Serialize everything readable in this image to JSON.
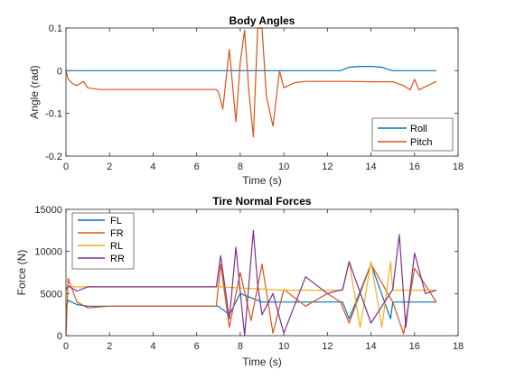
{
  "chart_data": [
    {
      "type": "line",
      "title": "Body Angles",
      "xlabel": "Time (s)",
      "ylabel": "Angle (rad)",
      "xlim": [
        0,
        18
      ],
      "ylim": [
        -0.2,
        0.1
      ],
      "xticks": [
        0,
        2,
        4,
        6,
        8,
        10,
        12,
        14,
        16,
        18
      ],
      "yticks": [
        -0.2,
        -0.1,
        0,
        0.1
      ],
      "xtick_labels": [
        "0",
        "2",
        "4",
        "6",
        "8",
        "10",
        "12",
        "14",
        "16",
        "18"
      ],
      "ytick_labels": [
        "-0.2",
        "-0.1",
        "0",
        "0.1"
      ],
      "grid": false,
      "legend_position": "bottom-right",
      "series": [
        {
          "name": "Roll",
          "color": "#0072BD",
          "x": [
            0,
            12.6,
            12.8,
            13.0,
            13.5,
            14.0,
            14.5,
            14.8,
            15.0,
            17.0
          ],
          "y": [
            0,
            0,
            0.004,
            0.008,
            0.01,
            0.01,
            0.008,
            0.003,
            0,
            0
          ]
        },
        {
          "name": "Pitch",
          "color": "#D95319",
          "x": [
            0,
            0.1,
            0.3,
            0.5,
            0.8,
            1.0,
            1.5,
            3.0,
            5.0,
            6.9,
            7.0,
            7.2,
            7.5,
            7.8,
            8.0,
            8.2,
            8.4,
            8.6,
            8.8,
            9.0,
            9.2,
            9.5,
            9.8,
            10.0,
            10.5,
            11.0,
            12.0,
            13.0,
            14.0,
            15.0,
            15.5,
            15.8,
            16.0,
            16.2,
            17.0
          ],
          "y": [
            0,
            -0.02,
            -0.03,
            -0.035,
            -0.025,
            -0.04,
            -0.044,
            -0.044,
            -0.044,
            -0.044,
            -0.05,
            -0.09,
            0.05,
            -0.12,
            0.02,
            0.095,
            -0.05,
            -0.155,
            0.1,
            0.1,
            -0.06,
            -0.13,
            0.0,
            -0.04,
            -0.028,
            -0.025,
            -0.025,
            -0.025,
            -0.026,
            -0.026,
            -0.035,
            -0.045,
            -0.02,
            -0.045,
            -0.025
          ]
        }
      ]
    },
    {
      "type": "line",
      "title": "Tire Normal Forces",
      "xlabel": "Time (s)",
      "ylabel": "Force (N)",
      "xlim": [
        0,
        18
      ],
      "ylim": [
        0,
        15000
      ],
      "xticks": [
        0,
        2,
        4,
        6,
        8,
        10,
        12,
        14,
        16,
        18
      ],
      "yticks": [
        0,
        5000,
        10000,
        15000
      ],
      "xtick_labels": [
        "0",
        "2",
        "4",
        "6",
        "8",
        "10",
        "12",
        "14",
        "16",
        "18"
      ],
      "ytick_labels": [
        "0",
        "5000",
        "10000",
        "15000"
      ],
      "grid": false,
      "legend_position": "top-left",
      "series": [
        {
          "name": "FL",
          "color": "#0072BD",
          "x": [
            0,
            0.1,
            0.5,
            1.0,
            2.0,
            7.0,
            7.5,
            8.0,
            9.0,
            10.0,
            12.7,
            13.0,
            14.0,
            14.9,
            15.0,
            17.0
          ],
          "y": [
            3400,
            4200,
            3700,
            3500,
            3500,
            3500,
            2500,
            5000,
            4000,
            4000,
            4000,
            2000,
            8500,
            2000,
            4000,
            4000
          ]
        },
        {
          "name": "FR",
          "color": "#D95319",
          "x": [
            0,
            0.1,
            0.5,
            1.0,
            2.0,
            6.9,
            7.1,
            7.5,
            8.0,
            8.5,
            9.0,
            9.5,
            10.0,
            11.0,
            12.0,
            12.6,
            13.0,
            14.0,
            15.0,
            15.5,
            16.0,
            17.0
          ],
          "y": [
            0,
            6800,
            4000,
            3300,
            3500,
            3500,
            8500,
            1000,
            7500,
            1800,
            8500,
            300,
            5500,
            3500,
            5000,
            4000,
            1500,
            8500,
            4000,
            200,
            8000,
            4000
          ]
        },
        {
          "name": "RL",
          "color": "#EDB120",
          "x": [
            0,
            0.1,
            1.0,
            7.0,
            10.0,
            12.7,
            13.0,
            13.5,
            14.0,
            14.5,
            14.9,
            15.0,
            17.0
          ],
          "y": [
            5500,
            5800,
            5800,
            5800,
            5400,
            5400,
            8800,
            1000,
            8800,
            1000,
            8800,
            5400,
            5400
          ]
        },
        {
          "name": "RR",
          "color": "#7E2F8E",
          "x": [
            0,
            0.1,
            0.5,
            1.0,
            2.0,
            6.9,
            7.1,
            7.5,
            7.8,
            8.2,
            8.6,
            8.8,
            9.0,
            9.5,
            10.0,
            11.0,
            12.0,
            12.7,
            13.0,
            14.0,
            15.0,
            15.3,
            15.6,
            16.0,
            16.5,
            17.0
          ],
          "y": [
            5500,
            5900,
            5300,
            5800,
            5800,
            5800,
            9500,
            2000,
            10500,
            0,
            12500,
            6000,
            2500,
            5000,
            300,
            7000,
            5000,
            5500,
            8800,
            1500,
            5500,
            12000,
            1000,
            9800,
            5000,
            5400
          ]
        }
      ]
    }
  ]
}
